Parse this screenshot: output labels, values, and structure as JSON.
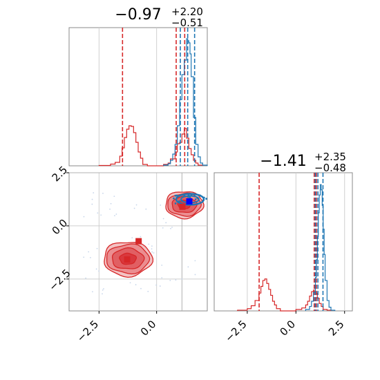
{
  "chart_data": [
    {
      "panel": "marginal-x",
      "type": "histogram",
      "title": {
        "value": "−0.97",
        "upper": "+2.20",
        "lower": "−0.51"
      },
      "xlim": [
        -3.8,
        2.2
      ],
      "grid": true,
      "xticks": [
        -2.5,
        0.0
      ],
      "series": [
        {
          "color": "#d62728",
          "edges": [
            -2.5,
            -2.0,
            -1.8,
            -1.6,
            -1.5,
            -1.4,
            -1.3,
            -1.2,
            -1.1,
            -1.0,
            -0.9,
            -0.8,
            -0.7,
            -0.6,
            -0.4,
            0.0,
            0.3,
            0.5,
            0.6,
            0.8,
            0.9,
            1.0,
            1.1,
            1.2,
            1.3,
            1.4,
            1.5,
            1.6,
            1.7,
            1.8,
            2.0
          ],
          "counts": [
            0.5,
            2.5,
            5,
            14,
            26,
            41,
            53,
            58,
            57,
            48,
            34,
            20,
            11,
            2,
            0,
            0,
            2,
            4,
            10,
            20,
            32,
            34,
            46,
            54,
            40,
            25,
            16,
            8,
            4,
            1
          ],
          "quantiles": [
            -1.48,
            0.85,
            1.22
          ]
        },
        {
          "color": "#1f77b4",
          "edges": [
            0.3,
            0.5,
            0.6,
            0.7,
            0.8,
            0.9,
            1.0,
            1.1,
            1.2,
            1.3,
            1.35,
            1.4,
            1.45,
            1.5,
            1.6,
            1.7,
            1.8,
            1.9,
            2.0,
            2.2
          ],
          "counts": [
            1,
            3,
            8,
            17,
            31,
            58,
            96,
            132,
            153,
            184,
            181,
            178,
            162,
            129,
            70,
            31,
            13,
            4,
            1
          ],
          "quantiles": [
            1.03,
            1.35,
            1.65
          ]
        }
      ]
    },
    {
      "panel": "joint",
      "type": "scatter",
      "xlim": [
        -3.8,
        2.2
      ],
      "ylim": [
        -4.0,
        2.5
      ],
      "grid": true,
      "xticks": [
        -2.5,
        0.0
      ],
      "yticks": [
        2.5,
        0.0,
        -2.5
      ],
      "xticklabels": [
        "−2.5",
        "0.0"
      ],
      "yticklabels": [
        "2.5",
        "0.0",
        "−2.5"
      ],
      "red_mode_center": [
        -1.25,
        -1.55
      ],
      "red_upper_center": [
        1.2,
        1.0
      ],
      "markers": [
        {
          "color": "#d62728",
          "x": -1.28,
          "y": -1.58
        },
        {
          "color": "#d62728",
          "x": -0.78,
          "y": -0.72
        },
        {
          "color": "#d62728",
          "x": 1.12,
          "y": 0.9
        },
        {
          "color": "#0000ff",
          "x": 1.42,
          "y": 1.15
        }
      ],
      "blue_cluster_center": [
        1.45,
        1.25
      ],
      "reference_lines": [
        {
          "axis": "x",
          "value": 1.1,
          "color": "#b0b0b0"
        },
        {
          "axis": "y",
          "value": 2.5,
          "color": "#b0b0b0"
        }
      ]
    },
    {
      "panel": "marginal-y",
      "type": "histogram",
      "title": {
        "value": "−1.41",
        "upper": "+2.35",
        "lower": "−0.48"
      },
      "xlim": [
        -4.2,
        2.9
      ],
      "grid": true,
      "xticks": [
        -2.5,
        0.0,
        2.5
      ],
      "xticklabels": [
        "−2.5",
        "0.0",
        "2.5"
      ],
      "series": [
        {
          "color": "#d62728",
          "edges": [
            -3.0,
            -2.5,
            -2.3,
            -2.1,
            -1.9,
            -1.8,
            -1.7,
            -1.6,
            -1.5,
            -1.4,
            -1.3,
            -1.2,
            -1.1,
            -1.0,
            -0.8,
            -0.5,
            0.0,
            0.3,
            0.5,
            0.6,
            0.7,
            0.8,
            0.9,
            1.0,
            1.1,
            1.2,
            1.3,
            1.4,
            1.6,
            1.8
          ],
          "counts": [
            1,
            3,
            7,
            14,
            24,
            33,
            41,
            43,
            37,
            29,
            21,
            13,
            8,
            3,
            0,
            0,
            2,
            4,
            8,
            13,
            20,
            26,
            28,
            24,
            17,
            10,
            6,
            2,
            1
          ],
          "quantiles": [
            -1.89,
            0.94,
            1.05
          ]
        },
        {
          "color": "#1f77b4",
          "edges": [
            0.5,
            0.7,
            0.8,
            0.9,
            1.0,
            1.05,
            1.1,
            1.15,
            1.2,
            1.25,
            1.3,
            1.35,
            1.4,
            1.45,
            1.5,
            1.6,
            1.7,
            1.8,
            2.0
          ],
          "counts": [
            2,
            6,
            13,
            25,
            45,
            69,
            100,
            132,
            156,
            170,
            163,
            142,
            110,
            76,
            41,
            14,
            5,
            1
          ],
          "quantiles": [
            1.0,
            1.13,
            1.39
          ]
        }
      ]
    }
  ]
}
